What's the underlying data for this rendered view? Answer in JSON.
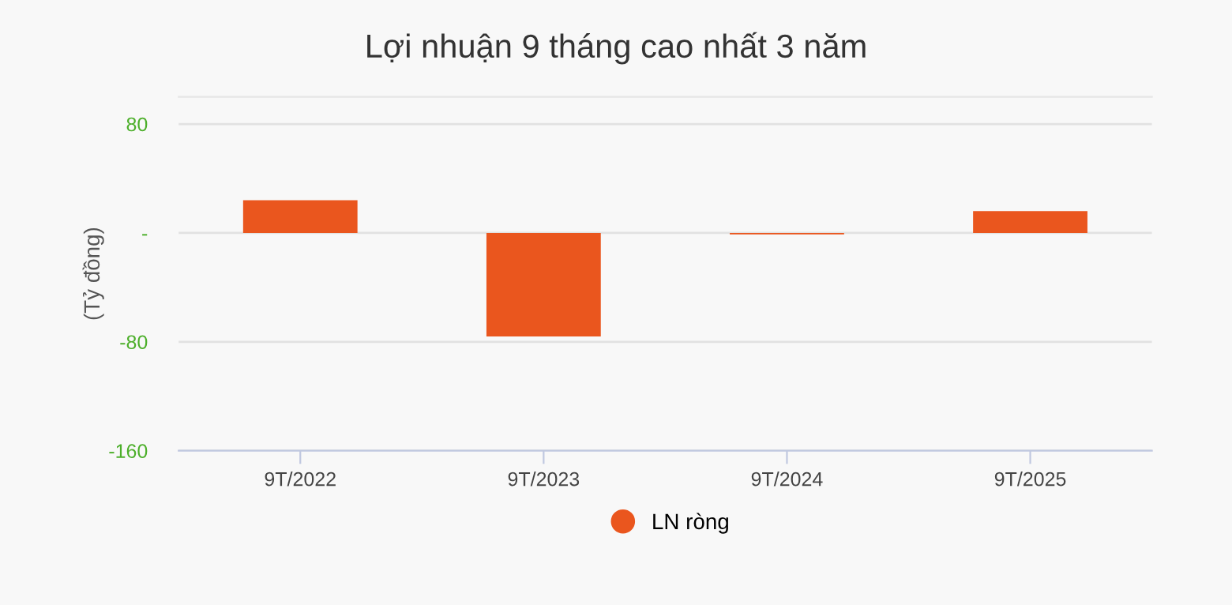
{
  "chart_data": {
    "type": "bar",
    "title": "Lợi nhuận 9 tháng cao nhất 3 năm",
    "ylabel": "(Tỷ đồng)",
    "categories": [
      "9T/2022",
      "9T/2023",
      "9T/2024",
      "9T/2025"
    ],
    "series": [
      {
        "name": "LN ròng",
        "color": "#ea561e",
        "values": [
          24,
          -76,
          -1,
          16
        ]
      }
    ],
    "ylim": [
      -160,
      100
    ],
    "yticks": [
      -160,
      -80,
      {
        "value": 0,
        "label": "-"
      },
      80
    ],
    "grid": "y",
    "legend": "bottom"
  }
}
